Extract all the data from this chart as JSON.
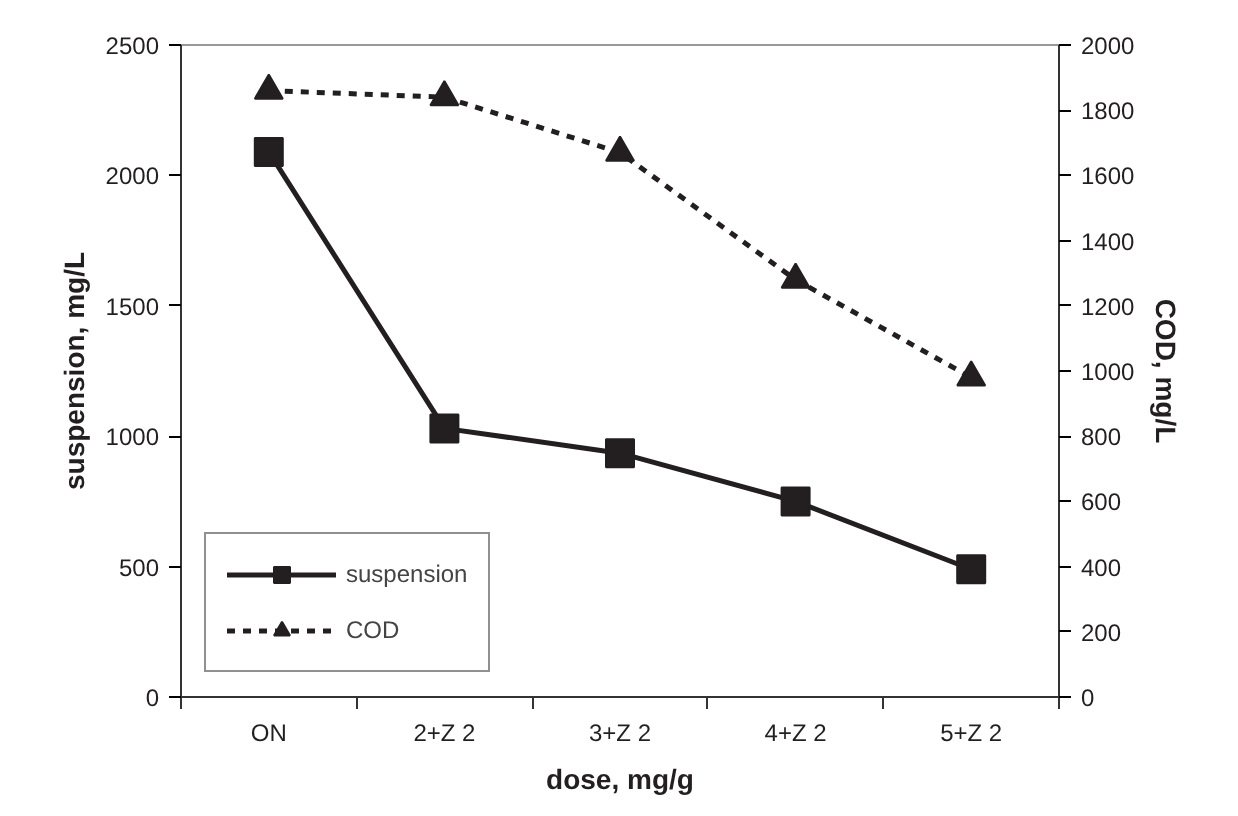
{
  "chart_data": {
    "type": "line",
    "xlabel": "dose, mg/g",
    "ylabel": "suspension, mg/L",
    "y2label": "COD, mg/L",
    "categories": [
      "ON",
      "2+Z 2",
      "3+Z 2",
      "4+Z 2",
      "5+Z 2"
    ],
    "series": [
      {
        "name": "suspension",
        "color": "#231f20",
        "values": [
          2090,
          1030,
          935,
          750,
          490
        ],
        "marker": "square",
        "line_style": "solid"
      },
      {
        "name": "COD",
        "color": "#231f20",
        "values": [
          1860,
          1840,
          1670,
          1280,
          980
        ],
        "marker": "triangle",
        "line_style": "dashed",
        "axis": "y2"
      }
    ],
    "ylim": [
      0,
      2500
    ],
    "yticks": [
      0,
      500,
      1000,
      1500,
      2000,
      2500
    ],
    "y2lim": [
      0,
      2000
    ],
    "y2ticks": [
      0,
      200,
      400,
      600,
      800,
      1000,
      1200,
      1400,
      1600,
      1800,
      2000
    ],
    "grid": false,
    "legend": "bottom left"
  }
}
